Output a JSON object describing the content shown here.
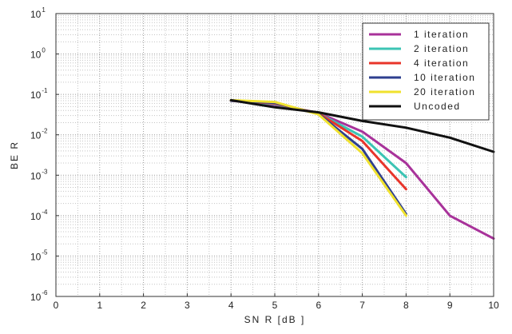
{
  "chart_data": {
    "type": "line",
    "xlabel": "SN R  [dB ]",
    "ylabel": "BE R",
    "xlim": [
      0,
      10
    ],
    "ylim_log10": [
      -6,
      1
    ],
    "y_scale": "log",
    "grid": "on, with minor gridlines",
    "legend_position": "top-right",
    "x_ticks": [
      "0",
      "1",
      "2",
      "3",
      "4",
      "5",
      "6",
      "7",
      "8",
      "9",
      "10"
    ],
    "y_ticks": [
      {
        "base": "10",
        "exp": "1",
        "log": 1
      },
      {
        "base": "10",
        "exp": "0",
        "log": 0
      },
      {
        "base": "10",
        "exp": "-1",
        "log": -1
      },
      {
        "base": "10",
        "exp": "-2",
        "log": -2
      },
      {
        "base": "10",
        "exp": "-3",
        "log": -3
      },
      {
        "base": "10",
        "exp": "-4",
        "log": -4
      },
      {
        "base": "10",
        "exp": "-5",
        "log": -5
      },
      {
        "base": "10",
        "exp": "-6",
        "log": -6
      }
    ],
    "series": [
      {
        "name": "1  iteration",
        "color": "#a8329a",
        "x": [
          4,
          5,
          6,
          7,
          8,
          9,
          10
        ],
        "y": [
          0.07,
          0.055,
          0.035,
          0.012,
          0.002,
          0.0001,
          2.7e-05
        ]
      },
      {
        "name": "2  iteration",
        "color": "#3cc4b4",
        "x": [
          4,
          5,
          6,
          7,
          8
        ],
        "y": [
          0.07,
          0.058,
          0.034,
          0.009,
          0.0009
        ]
      },
      {
        "name": "4  iteration",
        "color": "#e8342a",
        "x": [
          4,
          5,
          6,
          7,
          8
        ],
        "y": [
          0.07,
          0.06,
          0.034,
          0.007,
          0.00045
        ]
      },
      {
        "name": "10  iteration",
        "color": "#2e3f8f",
        "x": [
          4,
          5,
          6,
          7,
          8
        ],
        "y": [
          0.07,
          0.062,
          0.033,
          0.0045,
          0.00011
        ]
      },
      {
        "name": "20  iteration",
        "color": "#f0e22e",
        "x": [
          4,
          5,
          6,
          7,
          8
        ],
        "y": [
          0.072,
          0.065,
          0.032,
          0.0035,
          0.0001
        ]
      },
      {
        "name": "Uncoded",
        "color": "#111111",
        "x": [
          4,
          5,
          6,
          7,
          8,
          9,
          10
        ],
        "y": [
          0.072,
          0.048,
          0.036,
          0.022,
          0.015,
          0.0085,
          0.0038
        ]
      }
    ]
  }
}
